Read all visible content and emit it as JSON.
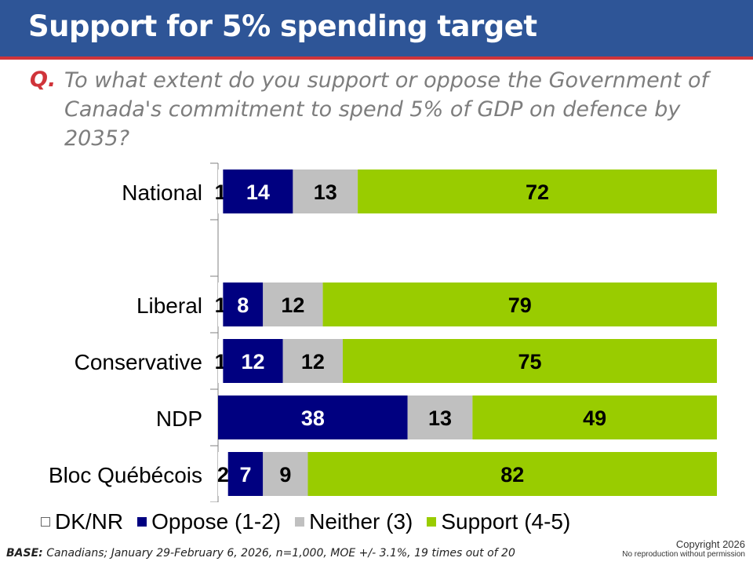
{
  "header": {
    "title": "Support for 5% spending target"
  },
  "question": {
    "marker": "Q.",
    "text": "To what extent do you support or oppose the Government of Canada's commitment to spend 5% of GDP on defence by 2035?"
  },
  "legend": [
    {
      "label": "DK/NR",
      "color": "#ffffff"
    },
    {
      "label": "Oppose (1-2)",
      "color": "#000080"
    },
    {
      "label": "Neither (3)",
      "color": "#c0c0c0"
    },
    {
      "label": "Support (4-5)",
      "color": "#99cc00"
    }
  ],
  "footer": {
    "base_label": "BASE:",
    "base_text": " Canadians; January 29-February 6, 2026, n=1,000, MOE +/- 3.1%, 19 times out of 20",
    "copyright": "Copyright 2026",
    "reproduction": "No reproduction without permission"
  },
  "chart_data": {
    "type": "bar",
    "orientation": "horizontal",
    "stacked": true,
    "categories": [
      "National",
      "",
      "Liberal",
      "Conservative",
      "NDP",
      "Bloc Québécois"
    ],
    "series": [
      {
        "name": "DK/NR",
        "values": [
          1,
          null,
          1,
          1,
          0,
          2
        ],
        "color": "#ffffff"
      },
      {
        "name": "Oppose (1-2)",
        "values": [
          14,
          null,
          8,
          12,
          38,
          7
        ],
        "color": "#000080"
      },
      {
        "name": "Neither (3)",
        "values": [
          13,
          null,
          12,
          12,
          13,
          9
        ],
        "color": "#c0c0c0"
      },
      {
        "name": "Support (4-5)",
        "values": [
          72,
          null,
          79,
          75,
          49,
          82
        ],
        "color": "#99cc00"
      }
    ],
    "xlim": [
      0,
      100
    ],
    "legend_position": "bottom",
    "grid": false
  }
}
